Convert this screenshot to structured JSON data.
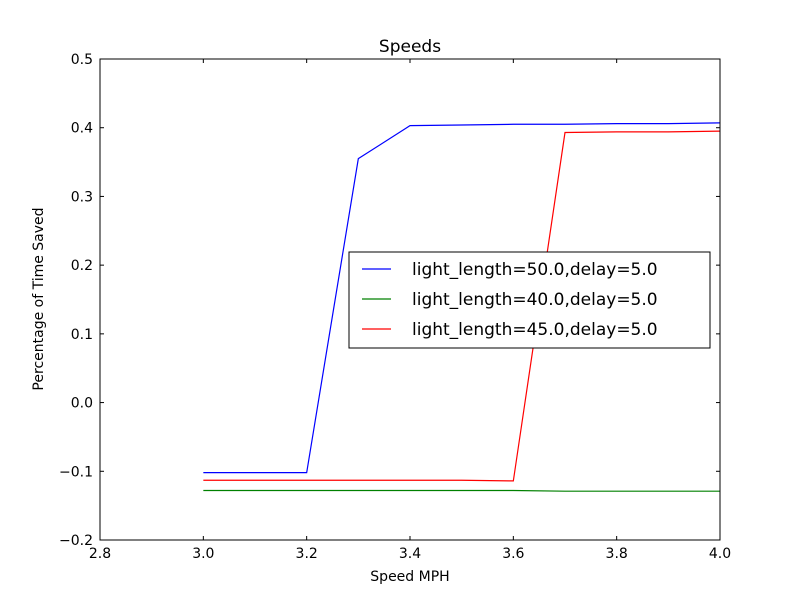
{
  "chart_data": {
    "type": "line",
    "title": "Speeds",
    "xlabel": "Speed MPH",
    "ylabel": "Percentage of Time Saved",
    "xlim": [
      2.8,
      4.0
    ],
    "ylim": [
      -0.2,
      0.5
    ],
    "xticks": [
      2.8,
      3.0,
      3.2,
      3.4,
      3.6,
      3.8,
      4.0
    ],
    "xtick_labels": [
      "2.8",
      "3.0",
      "3.2",
      "3.4",
      "3.6",
      "3.8",
      "4.0"
    ],
    "yticks": [
      -0.2,
      -0.1,
      0.0,
      0.1,
      0.2,
      0.3,
      0.4,
      0.5
    ],
    "ytick_labels": [
      "−0.2",
      "−0.1",
      "0.0",
      "0.1",
      "0.2",
      "0.3",
      "0.4",
      "0.5"
    ],
    "grid": false,
    "legend_position": "center-right",
    "x": [
      3.0,
      3.1,
      3.2,
      3.3,
      3.4,
      3.5,
      3.6,
      3.7,
      3.8,
      3.9,
      4.0
    ],
    "series": [
      {
        "name": "light_length=50.0,delay=5.0",
        "color": "#0000ff",
        "values": [
          -0.102,
          -0.102,
          -0.102,
          0.355,
          0.403,
          0.404,
          0.405,
          0.405,
          0.406,
          0.406,
          0.407
        ]
      },
      {
        "name": "light_length=40.0,delay=5.0",
        "color": "#008000",
        "values": [
          -0.128,
          -0.128,
          -0.128,
          -0.128,
          -0.128,
          -0.128,
          -0.128,
          -0.129,
          -0.129,
          -0.129,
          -0.129
        ]
      },
      {
        "name": "light_length=45.0,delay=5.0",
        "color": "#ff0000",
        "values": [
          -0.113,
          -0.113,
          -0.113,
          -0.113,
          -0.113,
          -0.113,
          -0.114,
          0.393,
          0.394,
          0.394,
          0.395
        ]
      }
    ]
  }
}
